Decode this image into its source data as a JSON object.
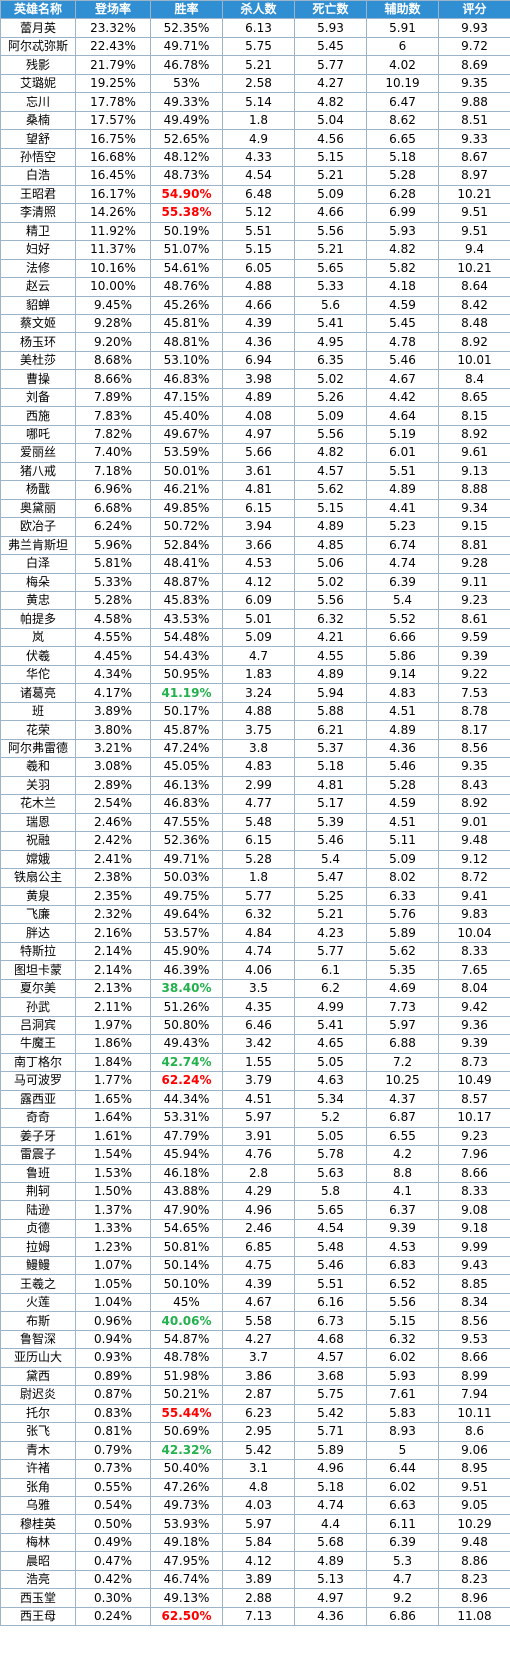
{
  "headers": [
    "英雄名称",
    "登场率",
    "胜率",
    "杀人数",
    "死亡数",
    "辅助数",
    "评分"
  ],
  "highlight_colors": {
    "red": "#ff0000",
    "green": "#22b14c"
  },
  "rows": [
    {
      "name": "蕾月英",
      "appear": "23.32%",
      "win": "52.35%",
      "kills": "6.13",
      "deaths": "5.93",
      "assists": "5.91",
      "score": "9.93",
      "hl": ""
    },
    {
      "name": "阿尔忒弥斯",
      "appear": "22.43%",
      "win": "49.71%",
      "kills": "5.75",
      "deaths": "5.45",
      "assists": "6",
      "score": "9.72",
      "hl": ""
    },
    {
      "name": "残影",
      "appear": "21.79%",
      "win": "46.78%",
      "kills": "5.21",
      "deaths": "5.77",
      "assists": "4.02",
      "score": "8.69",
      "hl": ""
    },
    {
      "name": "艾璐妮",
      "appear": "19.25%",
      "win": "53%",
      "kills": "2.58",
      "deaths": "4.27",
      "assists": "10.19",
      "score": "9.35",
      "hl": ""
    },
    {
      "name": "忘川",
      "appear": "17.78%",
      "win": "49.33%",
      "kills": "5.14",
      "deaths": "4.82",
      "assists": "6.47",
      "score": "9.88",
      "hl": ""
    },
    {
      "name": "桑楠",
      "appear": "17.57%",
      "win": "49.49%",
      "kills": "1.8",
      "deaths": "5.04",
      "assists": "8.62",
      "score": "8.51",
      "hl": ""
    },
    {
      "name": "望舒",
      "appear": "16.75%",
      "win": "52.65%",
      "kills": "4.9",
      "deaths": "4.56",
      "assists": "6.65",
      "score": "9.33",
      "hl": ""
    },
    {
      "name": "孙悟空",
      "appear": "16.68%",
      "win": "48.12%",
      "kills": "4.33",
      "deaths": "5.15",
      "assists": "5.18",
      "score": "8.67",
      "hl": ""
    },
    {
      "name": "白浩",
      "appear": "16.45%",
      "win": "48.73%",
      "kills": "4.54",
      "deaths": "5.21",
      "assists": "5.28",
      "score": "8.97",
      "hl": ""
    },
    {
      "name": "王昭君",
      "appear": "16.17%",
      "win": "54.90%",
      "kills": "6.48",
      "deaths": "5.09",
      "assists": "6.28",
      "score": "10.21",
      "hl": "red"
    },
    {
      "name": "李清照",
      "appear": "14.26%",
      "win": "55.38%",
      "kills": "5.12",
      "deaths": "4.66",
      "assists": "6.99",
      "score": "9.51",
      "hl": "red"
    },
    {
      "name": "精卫",
      "appear": "11.92%",
      "win": "50.19%",
      "kills": "5.51",
      "deaths": "5.56",
      "assists": "5.93",
      "score": "9.51",
      "hl": ""
    },
    {
      "name": "妇好",
      "appear": "11.37%",
      "win": "51.07%",
      "kills": "5.15",
      "deaths": "5.21",
      "assists": "4.82",
      "score": "9.4",
      "hl": ""
    },
    {
      "name": "法修",
      "appear": "10.16%",
      "win": "54.61%",
      "kills": "6.05",
      "deaths": "5.65",
      "assists": "5.82",
      "score": "10.21",
      "hl": ""
    },
    {
      "name": "赵云",
      "appear": "10.00%",
      "win": "48.76%",
      "kills": "4.88",
      "deaths": "5.33",
      "assists": "4.18",
      "score": "8.64",
      "hl": ""
    },
    {
      "name": "貂蝉",
      "appear": "9.45%",
      "win": "45.26%",
      "kills": "4.66",
      "deaths": "5.6",
      "assists": "4.59",
      "score": "8.42",
      "hl": ""
    },
    {
      "name": "蔡文姬",
      "appear": "9.28%",
      "win": "45.81%",
      "kills": "4.39",
      "deaths": "5.41",
      "assists": "5.45",
      "score": "8.48",
      "hl": ""
    },
    {
      "name": "杨玉环",
      "appear": "9.20%",
      "win": "48.81%",
      "kills": "4.36",
      "deaths": "4.95",
      "assists": "4.78",
      "score": "8.92",
      "hl": ""
    },
    {
      "name": "美杜莎",
      "appear": "8.68%",
      "win": "53.10%",
      "kills": "6.94",
      "deaths": "6.35",
      "assists": "5.46",
      "score": "10.01",
      "hl": ""
    },
    {
      "name": "曹操",
      "appear": "8.66%",
      "win": "46.83%",
      "kills": "3.98",
      "deaths": "5.02",
      "assists": "4.67",
      "score": "8.4",
      "hl": ""
    },
    {
      "name": "刘备",
      "appear": "7.89%",
      "win": "47.15%",
      "kills": "4.89",
      "deaths": "5.26",
      "assists": "4.42",
      "score": "8.65",
      "hl": ""
    },
    {
      "name": "西施",
      "appear": "7.83%",
      "win": "45.40%",
      "kills": "4.08",
      "deaths": "5.09",
      "assists": "4.64",
      "score": "8.15",
      "hl": ""
    },
    {
      "name": "哪吒",
      "appear": "7.82%",
      "win": "49.67%",
      "kills": "4.97",
      "deaths": "5.56",
      "assists": "5.19",
      "score": "8.92",
      "hl": ""
    },
    {
      "name": "爱丽丝",
      "appear": "7.40%",
      "win": "53.59%",
      "kills": "5.66",
      "deaths": "4.82",
      "assists": "6.01",
      "score": "9.61",
      "hl": ""
    },
    {
      "name": "猪八戒",
      "appear": "7.18%",
      "win": "50.01%",
      "kills": "3.61",
      "deaths": "4.57",
      "assists": "5.51",
      "score": "9.13",
      "hl": ""
    },
    {
      "name": "杨戬",
      "appear": "6.96%",
      "win": "46.21%",
      "kills": "4.81",
      "deaths": "5.62",
      "assists": "4.89",
      "score": "8.88",
      "hl": ""
    },
    {
      "name": "奥黛丽",
      "appear": "6.68%",
      "win": "49.85%",
      "kills": "6.15",
      "deaths": "5.15",
      "assists": "4.41",
      "score": "9.34",
      "hl": ""
    },
    {
      "name": "欧冶子",
      "appear": "6.24%",
      "win": "50.72%",
      "kills": "3.94",
      "deaths": "4.89",
      "assists": "5.23",
      "score": "9.15",
      "hl": ""
    },
    {
      "name": "弗兰肯斯坦",
      "appear": "5.96%",
      "win": "52.84%",
      "kills": "3.66",
      "deaths": "4.85",
      "assists": "6.74",
      "score": "8.81",
      "hl": ""
    },
    {
      "name": "白泽",
      "appear": "5.81%",
      "win": "48.41%",
      "kills": "4.53",
      "deaths": "5.06",
      "assists": "4.74",
      "score": "9.28",
      "hl": ""
    },
    {
      "name": "梅朵",
      "appear": "5.33%",
      "win": "48.87%",
      "kills": "4.12",
      "deaths": "5.02",
      "assists": "6.39",
      "score": "9.11",
      "hl": ""
    },
    {
      "name": "黄忠",
      "appear": "5.28%",
      "win": "45.83%",
      "kills": "6.09",
      "deaths": "5.56",
      "assists": "5.4",
      "score": "9.23",
      "hl": ""
    },
    {
      "name": "帕提多",
      "appear": "4.58%",
      "win": "43.53%",
      "kills": "5.01",
      "deaths": "6.32",
      "assists": "5.52",
      "score": "8.61",
      "hl": ""
    },
    {
      "name": "岚",
      "appear": "4.55%",
      "win": "54.48%",
      "kills": "5.09",
      "deaths": "4.21",
      "assists": "6.66",
      "score": "9.59",
      "hl": ""
    },
    {
      "name": "伏羲",
      "appear": "4.45%",
      "win": "54.43%",
      "kills": "4.7",
      "deaths": "4.55",
      "assists": "5.86",
      "score": "9.39",
      "hl": ""
    },
    {
      "name": "华佗",
      "appear": "4.34%",
      "win": "50.95%",
      "kills": "1.83",
      "deaths": "4.89",
      "assists": "9.14",
      "score": "9.22",
      "hl": ""
    },
    {
      "name": "诸葛亮",
      "appear": "4.17%",
      "win": "41.19%",
      "kills": "3.24",
      "deaths": "5.94",
      "assists": "4.83",
      "score": "7.53",
      "hl": "green"
    },
    {
      "name": "班",
      "appear": "3.89%",
      "win": "50.17%",
      "kills": "4.88",
      "deaths": "5.88",
      "assists": "4.51",
      "score": "8.78",
      "hl": ""
    },
    {
      "name": "花荣",
      "appear": "3.80%",
      "win": "45.87%",
      "kills": "3.75",
      "deaths": "6.21",
      "assists": "4.89",
      "score": "8.17",
      "hl": ""
    },
    {
      "name": "阿尔弗雷德",
      "appear": "3.21%",
      "win": "47.24%",
      "kills": "3.8",
      "deaths": "5.37",
      "assists": "4.36",
      "score": "8.56",
      "hl": ""
    },
    {
      "name": "羲和",
      "appear": "3.08%",
      "win": "45.05%",
      "kills": "4.83",
      "deaths": "5.18",
      "assists": "5.46",
      "score": "9.35",
      "hl": ""
    },
    {
      "name": "关羽",
      "appear": "2.89%",
      "win": "46.13%",
      "kills": "2.99",
      "deaths": "4.81",
      "assists": "5.28",
      "score": "8.43",
      "hl": ""
    },
    {
      "name": "花木兰",
      "appear": "2.54%",
      "win": "46.83%",
      "kills": "4.77",
      "deaths": "5.17",
      "assists": "4.59",
      "score": "8.92",
      "hl": ""
    },
    {
      "name": "瑞恩",
      "appear": "2.46%",
      "win": "47.55%",
      "kills": "5.48",
      "deaths": "5.39",
      "assists": "4.51",
      "score": "9.01",
      "hl": ""
    },
    {
      "name": "祝融",
      "appear": "2.42%",
      "win": "52.36%",
      "kills": "6.15",
      "deaths": "5.46",
      "assists": "5.11",
      "score": "9.48",
      "hl": ""
    },
    {
      "name": "嫦娥",
      "appear": "2.41%",
      "win": "49.71%",
      "kills": "5.28",
      "deaths": "5.4",
      "assists": "5.09",
      "score": "9.12",
      "hl": ""
    },
    {
      "name": "铁扇公主",
      "appear": "2.38%",
      "win": "50.03%",
      "kills": "1.8",
      "deaths": "5.47",
      "assists": "8.02",
      "score": "8.72",
      "hl": ""
    },
    {
      "name": "黄泉",
      "appear": "2.35%",
      "win": "49.75%",
      "kills": "5.77",
      "deaths": "5.25",
      "assists": "6.33",
      "score": "9.41",
      "hl": ""
    },
    {
      "name": "飞廉",
      "appear": "2.32%",
      "win": "49.64%",
      "kills": "6.32",
      "deaths": "5.21",
      "assists": "5.76",
      "score": "9.83",
      "hl": ""
    },
    {
      "name": "胖达",
      "appear": "2.16%",
      "win": "53.57%",
      "kills": "4.84",
      "deaths": "4.23",
      "assists": "5.89",
      "score": "10.04",
      "hl": ""
    },
    {
      "name": "特斯拉",
      "appear": "2.14%",
      "win": "45.90%",
      "kills": "4.74",
      "deaths": "5.77",
      "assists": "5.62",
      "score": "8.33",
      "hl": ""
    },
    {
      "name": "图坦卡蒙",
      "appear": "2.14%",
      "win": "46.39%",
      "kills": "4.06",
      "deaths": "6.1",
      "assists": "5.35",
      "score": "7.65",
      "hl": ""
    },
    {
      "name": "夏尔美",
      "appear": "2.13%",
      "win": "38.40%",
      "kills": "3.5",
      "deaths": "6.2",
      "assists": "4.69",
      "score": "8.04",
      "hl": "green"
    },
    {
      "name": "孙武",
      "appear": "2.11%",
      "win": "51.26%",
      "kills": "4.35",
      "deaths": "4.99",
      "assists": "7.73",
      "score": "9.42",
      "hl": ""
    },
    {
      "name": "吕洞宾",
      "appear": "1.97%",
      "win": "50.80%",
      "kills": "6.46",
      "deaths": "5.41",
      "assists": "5.97",
      "score": "9.36",
      "hl": ""
    },
    {
      "name": "牛魔王",
      "appear": "1.86%",
      "win": "49.43%",
      "kills": "3.42",
      "deaths": "4.65",
      "assists": "6.88",
      "score": "9.39",
      "hl": ""
    },
    {
      "name": "南丁格尔",
      "appear": "1.84%",
      "win": "42.74%",
      "kills": "1.55",
      "deaths": "5.05",
      "assists": "7.2",
      "score": "8.73",
      "hl": "green"
    },
    {
      "name": "马可波罗",
      "appear": "1.77%",
      "win": "62.24%",
      "kills": "3.79",
      "deaths": "4.63",
      "assists": "10.25",
      "score": "10.49",
      "hl": "red"
    },
    {
      "name": "露西亚",
      "appear": "1.65%",
      "win": "44.34%",
      "kills": "4.51",
      "deaths": "5.34",
      "assists": "4.37",
      "score": "8.57",
      "hl": ""
    },
    {
      "name": "奇奇",
      "appear": "1.64%",
      "win": "53.31%",
      "kills": "5.97",
      "deaths": "5.2",
      "assists": "6.87",
      "score": "10.17",
      "hl": ""
    },
    {
      "name": "姜子牙",
      "appear": "1.61%",
      "win": "47.79%",
      "kills": "3.91",
      "deaths": "5.05",
      "assists": "6.55",
      "score": "9.23",
      "hl": ""
    },
    {
      "name": "雷震子",
      "appear": "1.54%",
      "win": "45.94%",
      "kills": "4.76",
      "deaths": "5.78",
      "assists": "4.2",
      "score": "7.96",
      "hl": ""
    },
    {
      "name": "鲁班",
      "appear": "1.53%",
      "win": "46.18%",
      "kills": "2.8",
      "deaths": "5.63",
      "assists": "8.8",
      "score": "8.66",
      "hl": ""
    },
    {
      "name": "荆轲",
      "appear": "1.50%",
      "win": "43.88%",
      "kills": "4.29",
      "deaths": "5.8",
      "assists": "4.1",
      "score": "8.33",
      "hl": ""
    },
    {
      "name": "陆逊",
      "appear": "1.37%",
      "win": "47.90%",
      "kills": "4.96",
      "deaths": "5.65",
      "assists": "6.37",
      "score": "9.08",
      "hl": ""
    },
    {
      "name": "贞德",
      "appear": "1.33%",
      "win": "54.65%",
      "kills": "2.46",
      "deaths": "4.54",
      "assists": "9.39",
      "score": "9.18",
      "hl": ""
    },
    {
      "name": "拉姆",
      "appear": "1.23%",
      "win": "50.81%",
      "kills": "6.85",
      "deaths": "5.48",
      "assists": "4.53",
      "score": "9.99",
      "hl": ""
    },
    {
      "name": "鳗鳗",
      "appear": "1.07%",
      "win": "50.14%",
      "kills": "4.75",
      "deaths": "5.46",
      "assists": "6.83",
      "score": "9.43",
      "hl": ""
    },
    {
      "name": "王羲之",
      "appear": "1.05%",
      "win": "50.10%",
      "kills": "4.39",
      "deaths": "5.51",
      "assists": "6.52",
      "score": "8.85",
      "hl": ""
    },
    {
      "name": "火莲",
      "appear": "1.04%",
      "win": "45%",
      "kills": "4.67",
      "deaths": "6.16",
      "assists": "5.56",
      "score": "8.34",
      "hl": ""
    },
    {
      "name": "布斯",
      "appear": "0.96%",
      "win": "40.06%",
      "kills": "5.58",
      "deaths": "6.73",
      "assists": "5.15",
      "score": "8.56",
      "hl": "green"
    },
    {
      "name": "鲁智深",
      "appear": "0.94%",
      "win": "54.87%",
      "kills": "4.27",
      "deaths": "4.68",
      "assists": "6.32",
      "score": "9.53",
      "hl": ""
    },
    {
      "name": "亚历山大",
      "appear": "0.93%",
      "win": "48.78%",
      "kills": "3.7",
      "deaths": "4.57",
      "assists": "6.02",
      "score": "8.66",
      "hl": ""
    },
    {
      "name": "黛西",
      "appear": "0.89%",
      "win": "51.98%",
      "kills": "3.86",
      "deaths": "3.68",
      "assists": "5.93",
      "score": "8.99",
      "hl": ""
    },
    {
      "name": "尉迟炎",
      "appear": "0.87%",
      "win": "50.21%",
      "kills": "2.87",
      "deaths": "5.75",
      "assists": "7.61",
      "score": "7.94",
      "hl": ""
    },
    {
      "name": "托尔",
      "appear": "0.83%",
      "win": "55.44%",
      "kills": "6.23",
      "deaths": "5.42",
      "assists": "5.83",
      "score": "10.11",
      "hl": "red"
    },
    {
      "name": "张飞",
      "appear": "0.81%",
      "win": "50.69%",
      "kills": "2.95",
      "deaths": "5.71",
      "assists": "8.93",
      "score": "8.6",
      "hl": ""
    },
    {
      "name": "青木",
      "appear": "0.79%",
      "win": "42.32%",
      "kills": "5.42",
      "deaths": "5.89",
      "assists": "5",
      "score": "9.06",
      "hl": "green"
    },
    {
      "name": "许褚",
      "appear": "0.73%",
      "win": "50.40%",
      "kills": "3.1",
      "deaths": "4.96",
      "assists": "6.44",
      "score": "8.95",
      "hl": ""
    },
    {
      "name": "张角",
      "appear": "0.55%",
      "win": "47.26%",
      "kills": "4.8",
      "deaths": "5.18",
      "assists": "6.02",
      "score": "9.51",
      "hl": ""
    },
    {
      "name": "乌雅",
      "appear": "0.54%",
      "win": "49.73%",
      "kills": "4.03",
      "deaths": "4.74",
      "assists": "6.63",
      "score": "9.05",
      "hl": ""
    },
    {
      "name": "穆桂英",
      "appear": "0.50%",
      "win": "53.93%",
      "kills": "5.97",
      "deaths": "4.4",
      "assists": "6.11",
      "score": "10.29",
      "hl": ""
    },
    {
      "name": "梅林",
      "appear": "0.49%",
      "win": "49.18%",
      "kills": "5.84",
      "deaths": "5.68",
      "assists": "6.39",
      "score": "9.48",
      "hl": ""
    },
    {
      "name": "晨昭",
      "appear": "0.47%",
      "win": "47.95%",
      "kills": "4.12",
      "deaths": "4.89",
      "assists": "5.3",
      "score": "8.86",
      "hl": ""
    },
    {
      "name": "浩亮",
      "appear": "0.42%",
      "win": "46.74%",
      "kills": "3.89",
      "deaths": "5.13",
      "assists": "4.7",
      "score": "8.23",
      "hl": ""
    },
    {
      "name": "西玉堂",
      "appear": "0.30%",
      "win": "49.13%",
      "kills": "2.88",
      "deaths": "4.97",
      "assists": "9.2",
      "score": "8.96",
      "hl": ""
    },
    {
      "name": "西王母",
      "appear": "0.24%",
      "win": "62.50%",
      "kills": "7.13",
      "deaths": "4.36",
      "assists": "6.86",
      "score": "11.08",
      "hl": "red"
    }
  ]
}
